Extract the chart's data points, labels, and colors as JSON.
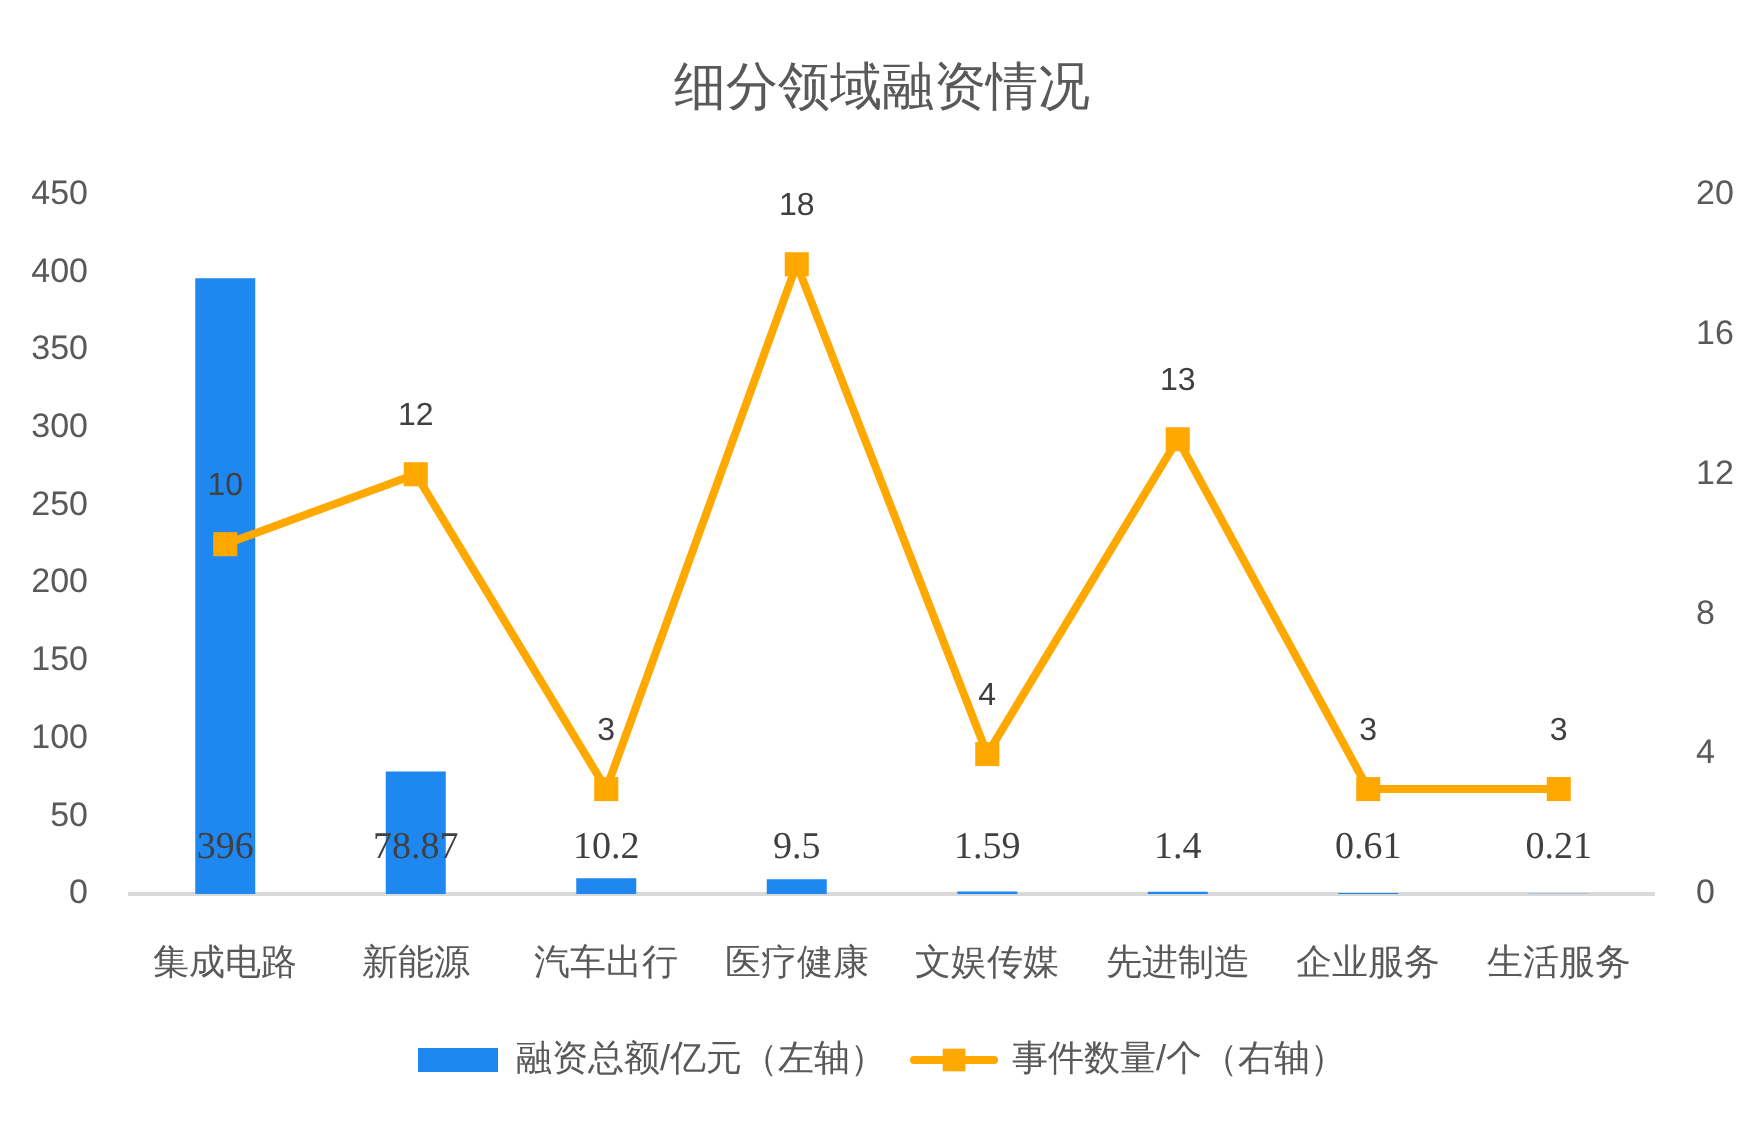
{
  "chart_data": {
    "type": "bar",
    "title": "细分领域融资情况",
    "categories": [
      "集成电路",
      "新能源",
      "汽车出行",
      "医疗健康",
      "文娱传媒",
      "先进制造",
      "企业服务",
      "生活服务"
    ],
    "series": [
      {
        "name": "融资总额/亿元（左轴）",
        "color": "#1f88f0",
        "values": [
          396,
          78.87,
          10.2,
          9.5,
          1.59,
          1.4,
          0.61,
          0.21
        ]
      },
      {
        "name": "事件数量/个（右轴）",
        "type": "line",
        "axis": "y2",
        "color": "#ffa800",
        "values": [
          10,
          12,
          3,
          18,
          4,
          13,
          3,
          3
        ]
      }
    ],
    "ylim": [
      0,
      450
    ],
    "yticks": [
      0,
      50,
      100,
      150,
      200,
      250,
      300,
      350,
      400,
      450
    ],
    "y2lim": [
      0,
      20
    ],
    "y2ticks": [
      0,
      4,
      8,
      12,
      16,
      20
    ],
    "data_labels": true,
    "grid": false,
    "legend": "bottom",
    "marker": "square",
    "line_style": "solid"
  }
}
